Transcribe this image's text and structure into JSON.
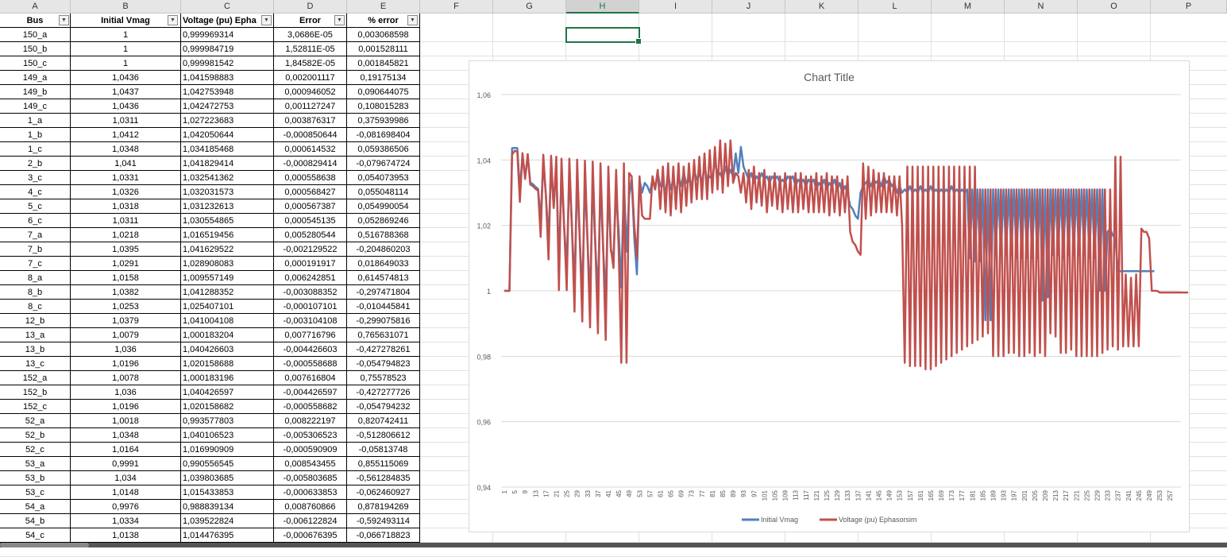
{
  "columns": [
    "A",
    "B",
    "C",
    "D",
    "E",
    "F",
    "G",
    "H",
    "I",
    "J",
    "K",
    "L",
    "M",
    "N",
    "O",
    "P"
  ],
  "selected_column": "H",
  "headers": {
    "bus": "Bus",
    "initial": "Initial Vmag",
    "voltage": "Voltage (pu) Epha",
    "error": "Error",
    "pct": "% error"
  },
  "rows": [
    [
      "150_a",
      "1",
      "0,999969314",
      "3,0686E-05",
      "0,003068598"
    ],
    [
      "150_b",
      "1",
      "0,999984719",
      "1,52811E-05",
      "0,001528111"
    ],
    [
      "150_c",
      "1",
      "0,999981542",
      "1,84582E-05",
      "0,001845821"
    ],
    [
      "149_a",
      "1,0436",
      "1,041598883",
      "0,002001117",
      "0,19175134"
    ],
    [
      "149_b",
      "1,0437",
      "1,042753948",
      "0,000946052",
      "0,090644075"
    ],
    [
      "149_c",
      "1,0436",
      "1,042472753",
      "0,001127247",
      "0,108015283"
    ],
    [
      "1_a",
      "1,0311",
      "1,027223683",
      "0,003876317",
      "0,375939986"
    ],
    [
      "1_b",
      "1,0412",
      "1,042050644",
      "-0,000850644",
      "-0,081698404"
    ],
    [
      "1_c",
      "1,0348",
      "1,034185468",
      "0,000614532",
      "0,059386506"
    ],
    [
      "2_b",
      "1,041",
      "1,041829414",
      "-0,000829414",
      "-0,079674724"
    ],
    [
      "3_c",
      "1,0331",
      "1,032541362",
      "0,000558638",
      "0,054073953"
    ],
    [
      "4_c",
      "1,0326",
      "1,032031573",
      "0,000568427",
      "0,055048114"
    ],
    [
      "5_c",
      "1,0318",
      "1,031232613",
      "0,000567387",
      "0,054990054"
    ],
    [
      "6_c",
      "1,0311",
      "1,030554865",
      "0,000545135",
      "0,052869246"
    ],
    [
      "7_a",
      "1,0218",
      "1,016519456",
      "0,005280544",
      "0,516788368"
    ],
    [
      "7_b",
      "1,0395",
      "1,041629522",
      "-0,002129522",
      "-0,204860203"
    ],
    [
      "7_c",
      "1,0291",
      "1,028908083",
      "0,000191917",
      "0,018649033"
    ],
    [
      "8_a",
      "1,0158",
      "1,009557149",
      "0,006242851",
      "0,614574813"
    ],
    [
      "8_b",
      "1,0382",
      "1,041288352",
      "-0,003088352",
      "-0,297471804"
    ],
    [
      "8_c",
      "1,0253",
      "1,025407101",
      "-0,000107101",
      "-0,010445841"
    ],
    [
      "12_b",
      "1,0379",
      "1,041004108",
      "-0,003104108",
      "-0,299075816"
    ],
    [
      "13_a",
      "1,0079",
      "1,000183204",
      "0,007716796",
      "0,765631071"
    ],
    [
      "13_b",
      "1,036",
      "1,040426603",
      "-0,004426603",
      "-0,427278261"
    ],
    [
      "13_c",
      "1,0196",
      "1,020158688",
      "-0,000558688",
      "-0,054794823"
    ],
    [
      "152_a",
      "1,0078",
      "1,000183196",
      "0,007616804",
      "0,75578523"
    ],
    [
      "152_b",
      "1,036",
      "1,040426597",
      "-0,004426597",
      "-0,427277726"
    ],
    [
      "152_c",
      "1,0196",
      "1,020158682",
      "-0,000558682",
      "-0,054794232"
    ],
    [
      "52_a",
      "1,0018",
      "0,993577803",
      "0,008222197",
      "0,820742411"
    ],
    [
      "52_b",
      "1,0348",
      "1,040106523",
      "-0,005306523",
      "-0,512806612"
    ],
    [
      "52_c",
      "1,0164",
      "1,016990909",
      "-0,000590909",
      "-0,05813748"
    ],
    [
      "53_a",
      "0,9991",
      "0,990556545",
      "0,008543455",
      "0,855115069"
    ],
    [
      "53_b",
      "1,034",
      "1,039803685",
      "-0,005803685",
      "-0,561284835"
    ],
    [
      "53_c",
      "1,0148",
      "1,015433853",
      "-0,000633853",
      "-0,062460927"
    ],
    [
      "54_a",
      "0,9976",
      "0,988839134",
      "0,008760866",
      "0,878194269"
    ],
    [
      "54_b",
      "1,0334",
      "1,039522824",
      "-0,006122824",
      "-0,592493114"
    ],
    [
      "54_c",
      "1,0138",
      "1,014476395",
      "-0,000676395",
      "-0,066718823"
    ]
  ],
  "chart_data": {
    "type": "line",
    "title": "Chart Title",
    "y_ticks": [
      "1,06",
      "1,04",
      "1,02",
      "1",
      "0,98",
      "0,96",
      "0,94"
    ],
    "ylim": [
      0.94,
      1.06
    ],
    "x_ticks": [
      "1",
      "5",
      "9",
      "13",
      "17",
      "21",
      "25",
      "29",
      "33",
      "37",
      "41",
      "45",
      "49",
      "53",
      "57",
      "61",
      "65",
      "69",
      "73",
      "77",
      "81",
      "85",
      "89",
      "93",
      "97",
      "101",
      "105",
      "109",
      "113",
      "117",
      "121",
      "125",
      "129",
      "133",
      "137",
      "141",
      "145",
      "149",
      "153",
      "157",
      "161",
      "165",
      "169",
      "173",
      "177",
      "181",
      "185",
      "189",
      "193",
      "197",
      "201",
      "205",
      "209",
      "213",
      "217",
      "221",
      "225",
      "229",
      "233",
      "237",
      "241",
      "245",
      "249",
      "253",
      "257"
    ],
    "x_count": 260,
    "grid": true,
    "legend": "bottom",
    "series": [
      {
        "name": "Initial Vmag",
        "color": "#4f81bd",
        "values": [
          1,
          1,
          1,
          1.0436,
          1.0437,
          1.0436,
          1.0311,
          1.0412,
          1.0348,
          1.041,
          1.0331,
          1.0326,
          1.0318,
          1.0311,
          1.0218,
          1.0395,
          1.0291,
          1.0158,
          1.0382,
          1.0253,
          1.0379,
          1.0079,
          1.036,
          1.0196,
          1.0078,
          1.036,
          1.0196,
          1.0018,
          1.0348,
          1.0164,
          0.9991,
          1.034,
          1.0148,
          0.9976,
          1.0334,
          1.0138,
          0.999,
          1.033,
          1.013,
          0.998,
          1.032,
          1.012,
          1.011,
          1.03,
          1.018,
          1.001,
          1.034,
          1.012,
          1.029,
          1.034,
          1.016,
          1.005,
          1.034,
          1.03,
          1.033,
          1.032,
          1.03,
          1.034,
          1.031,
          1.036,
          1.032,
          1.033,
          1.03,
          1.036,
          1.031,
          1.034,
          1.03,
          1.035,
          1.032,
          1.036,
          1.033,
          1.034,
          1.032,
          1.037,
          1.034,
          1.036,
          1.033,
          1.038,
          1.034,
          1.035,
          1.034,
          1.04,
          1.035,
          1.036,
          1.034,
          1.038,
          1.035,
          1.037,
          1.035,
          1.042,
          1.036,
          1.044,
          1.038,
          1.036,
          1.034,
          1.036,
          1.033,
          1.035,
          1.034,
          1.036,
          1.034,
          1.035,
          1.033,
          1.035,
          1.034,
          1.035,
          1.033,
          1.034,
          1.033,
          1.035,
          1.034,
          1.035,
          1.032,
          1.034,
          1.033,
          1.034,
          1.032,
          1.034,
          1.033,
          1.034,
          1.031,
          1.033,
          1.032,
          1.034,
          1.031,
          1.033,
          1.032,
          1.034,
          1.031,
          1.033,
          1.03,
          1.032,
          1.03,
          1.026,
          1.025,
          1.023,
          1.022,
          1.03,
          1.032,
          1.033,
          1.034,
          1.032,
          1.034,
          1.033,
          1.034,
          1.032,
          1.035,
          1.033,
          1.034,
          1.032,
          1.033,
          1.03,
          1.032,
          1.03,
          1.031,
          1.03,
          1.032,
          1.03,
          1.031,
          1.03,
          1.032,
          1.03,
          1.031,
          1.03,
          1.032,
          1.03,
          1.031,
          1.03,
          1.031,
          1.03,
          1.031,
          1.03,
          1.032,
          1.03,
          1.031,
          1.03,
          1.031,
          1.03,
          1.031,
          1.01,
          1.031,
          1.009,
          1.031,
          1.009,
          1.031,
          0.991,
          1.031,
          0.991,
          1.031,
          1.011,
          1.031,
          1.011,
          1.031,
          1.011,
          1.031,
          1.011,
          1.031,
          1.01,
          1.031,
          1.01,
          1.031,
          1.01,
          1.031,
          1.01,
          1.031,
          1.01,
          1.031,
          0.997,
          1.031,
          0.998,
          1.031,
          1.011,
          1.031,
          1.011,
          1.031,
          1.01,
          1.031,
          1.011,
          1.031,
          1.011,
          1.031,
          1.011,
          1.031,
          1.011,
          1.031,
          1.01,
          1.031,
          1.01,
          1.031,
          1.0,
          1.031,
          1.0,
          1.018,
          1.019,
          1.017,
          1.016,
          1.006,
          1.006,
          1.006,
          1.006,
          1.006,
          1.006,
          1.006,
          1.006,
          1.006,
          1.006,
          1.006,
          1.006,
          1.006,
          1.006,
          1.006
        ]
      },
      {
        "name": "Voltage (pu) Ephasorsim",
        "color": "#c0504d",
        "values": [
          1,
          1,
          1,
          1.0416,
          1.0428,
          1.0425,
          1.0272,
          1.0421,
          1.0342,
          1.0418,
          1.0325,
          1.032,
          1.0312,
          1.0306,
          1.0165,
          1.0416,
          1.0289,
          1.0096,
          1.0413,
          1.0254,
          1.041,
          1.0002,
          1.0404,
          1.0202,
          1.0002,
          1.0404,
          1.0202,
          0.9936,
          1.0401,
          1.017,
          0.9906,
          1.0398,
          1.0154,
          0.9888,
          1.0395,
          1.0145,
          0.987,
          1.039,
          1.014,
          0.985,
          1.038,
          1.013,
          1.007,
          1.037,
          1.012,
          0.978,
          1.039,
          0.978,
          1.036,
          1.035,
          1.02,
          1.01,
          1.035,
          1.023,
          1.022,
          1.022,
          1.022,
          1.035,
          1.031,
          1.037,
          1.025,
          1.038,
          1.024,
          1.039,
          1.023,
          1.038,
          1.025,
          1.039,
          1.024,
          1.038,
          1.026,
          1.039,
          1.027,
          1.04,
          1.028,
          1.041,
          1.028,
          1.042,
          1.028,
          1.043,
          1.03,
          1.044,
          1.031,
          1.046,
          1.03,
          1.045,
          1.032,
          1.046,
          1.033,
          1.036,
          1.035,
          1.03,
          1.036,
          1.027,
          1.037,
          1.025,
          1.038,
          1.027,
          1.036,
          1.026,
          1.037,
          1.024,
          1.035,
          1.026,
          1.036,
          1.025,
          1.035,
          1.024,
          1.036,
          1.025,
          1.035,
          1.024,
          1.036,
          1.024,
          1.036,
          1.025,
          1.035,
          1.024,
          1.035,
          1.024,
          1.036,
          1.024,
          1.035,
          1.024,
          1.036,
          1.023,
          1.035,
          1.024,
          1.035,
          1.023,
          1.034,
          1.024,
          1.035,
          1.018,
          1.015,
          1.014,
          1.012,
          1.011,
          1.039,
          1.022,
          1.038,
          1.023,
          1.037,
          1.024,
          1.036,
          1.024,
          1.036,
          1.024,
          1.035,
          1.024,
          1.035,
          1.023,
          1.035,
          1.02,
          0.978,
          1.038,
          0.977,
          1.038,
          0.977,
          1.038,
          0.977,
          1.038,
          0.976,
          1.038,
          0.976,
          1.038,
          0.977,
          1.038,
          0.978,
          1.038,
          0.979,
          1.038,
          0.98,
          1.038,
          0.981,
          1.038,
          0.982,
          1.038,
          0.983,
          1.038,
          0.984,
          1.038,
          0.985,
          1.031,
          0.986,
          1.031,
          0.987,
          1.031,
          0.98,
          1.031,
          0.98,
          1.031,
          0.98,
          1.031,
          0.981,
          1.031,
          0.981,
          1.031,
          0.98,
          1.031,
          0.98,
          1.031,
          0.981,
          1.031,
          0.98,
          1.031,
          0.981,
          1.031,
          0.98,
          1.031,
          0.987,
          1.031,
          0.986,
          1.031,
          0.981,
          1.031,
          0.981,
          1.031,
          0.982,
          1.031,
          0.98,
          1.031,
          0.98,
          1.031,
          0.98,
          1.031,
          0.98,
          1.031,
          0.98,
          1.031,
          0.981,
          1.031,
          0.982,
          1.031,
          0.983,
          1.041,
          0.982,
          1.041,
          0.983,
          1.005,
          0.983,
          1.004,
          0.983,
          1.005,
          0.983,
          1.019,
          1.018,
          1.018,
          1.016,
          1.0,
          1.0,
          1.0,
          0.9995,
          0.9995,
          0.9995,
          0.9995,
          0.9995,
          0.9995,
          0.9995,
          0.9995,
          0.9995,
          0.9995,
          0.9995,
          0.9995
        ]
      }
    ]
  }
}
